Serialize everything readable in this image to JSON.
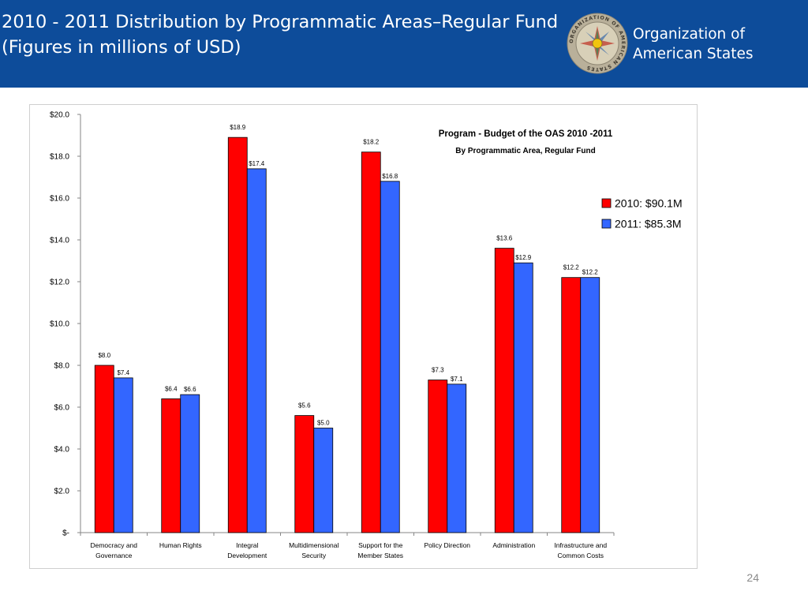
{
  "header": {
    "title_line1": "2010 - 2011 Distribution by Programmatic Areas–Regular Fund",
    "title_line2": "(Figures in millions of USD)"
  },
  "org": {
    "name_line1": "Organization of",
    "name_line2": "American States",
    "seal_text": "ORGANIZATION OF AMERICAN STATES"
  },
  "page_number": "24",
  "colors": {
    "header_bg": "#0d4c9a",
    "series_2010": "#ff0000",
    "series_2011": "#3366ff"
  },
  "chart_data": {
    "type": "bar",
    "title": "Program - Budget of the OAS 2010 -2011",
    "subtitle": "By Programmatic Area, Regular Fund",
    "categories": [
      [
        "Democracy and",
        "Governance"
      ],
      [
        "Human Rights"
      ],
      [
        "Integral",
        "Development"
      ],
      [
        "Multidimensional",
        "Security"
      ],
      [
        "Support for the",
        "Member States"
      ],
      [
        "Policy Direction"
      ],
      [
        "Administration"
      ],
      [
        "Infrastructure and",
        "Common Costs"
      ]
    ],
    "series": [
      {
        "name": "2010: $90.1M",
        "color": "#ff0000",
        "values": [
          8.0,
          6.4,
          18.9,
          5.6,
          18.2,
          7.3,
          13.6,
          12.2
        ],
        "labels": [
          "$8.0",
          "$6.4",
          "$18.9",
          "$5.6",
          "$18.2",
          "$7.3",
          "$13.6",
          "$12.2"
        ]
      },
      {
        "name": "2011: $85.3M",
        "color": "#3366ff",
        "values": [
          7.4,
          6.6,
          17.4,
          5.0,
          16.8,
          7.1,
          12.9,
          12.2
        ],
        "labels": [
          "$7.4",
          "$6.6",
          "$17.4",
          "$5.0",
          "$16.8",
          "$7.1",
          "$12.9",
          "$12.2"
        ]
      }
    ],
    "y_ticks": [
      {
        "value": 0,
        "label": "$-"
      },
      {
        "value": 2,
        "label": "$2.0"
      },
      {
        "value": 4,
        "label": "$4.0"
      },
      {
        "value": 6,
        "label": "$6.0"
      },
      {
        "value": 8,
        "label": "$8.0"
      },
      {
        "value": 10,
        "label": "$10.0"
      },
      {
        "value": 12,
        "label": "$12.0"
      },
      {
        "value": 14,
        "label": "$14.0"
      },
      {
        "value": 16,
        "label": "$16.0"
      },
      {
        "value": 18,
        "label": "$18.0"
      },
      {
        "value": 20,
        "label": "$20.0"
      }
    ],
    "ylim": [
      0,
      20
    ],
    "grid": false,
    "legend_position": "right"
  }
}
